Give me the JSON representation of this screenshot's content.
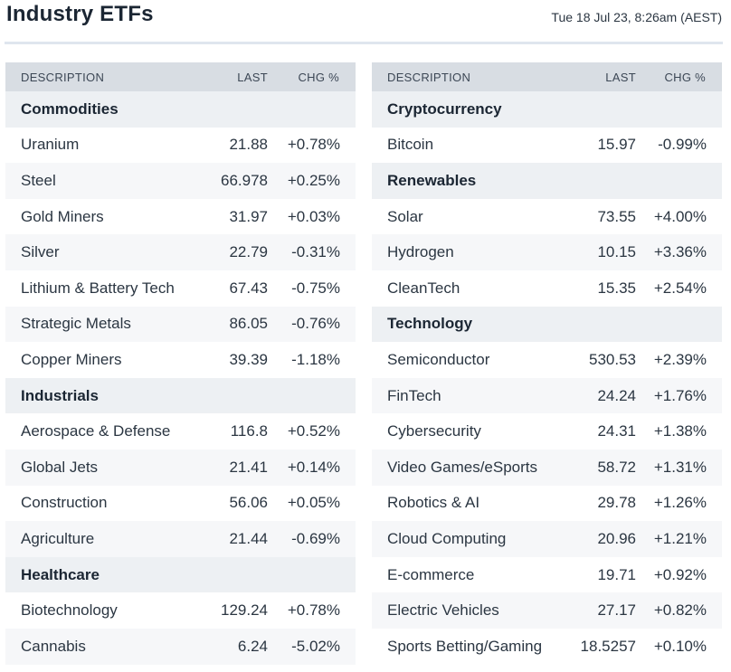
{
  "header": {
    "title": "Industry ETFs",
    "timestamp": "Tue 18 Jul 23, 8:26am (AEST)"
  },
  "columns": {
    "description": "DESCRIPTION",
    "last": "LAST",
    "chg": "CHG %"
  },
  "colors": {
    "positive": "#2f8a57",
    "negative": "#d4403a",
    "header_bg": "#d8dde3",
    "section_bg": "#edf0f3"
  },
  "left_table": [
    {
      "section": "Commodities",
      "items": [
        {
          "name": "Uranium",
          "last": "21.88",
          "chg": "+0.78%"
        },
        {
          "name": "Steel",
          "last": "66.978",
          "chg": "+0.25%"
        },
        {
          "name": "Gold Miners",
          "last": "31.97",
          "chg": "+0.03%"
        },
        {
          "name": "Silver",
          "last": "22.79",
          "chg": "-0.31%"
        },
        {
          "name": "Lithium & Battery Tech",
          "last": "67.43",
          "chg": "-0.75%"
        },
        {
          "name": "Strategic Metals",
          "last": "86.05",
          "chg": "-0.76%"
        },
        {
          "name": "Copper Miners",
          "last": "39.39",
          "chg": "-1.18%"
        }
      ]
    },
    {
      "section": "Industrials",
      "items": [
        {
          "name": "Aerospace & Defense",
          "last": "116.8",
          "chg": "+0.52%"
        },
        {
          "name": "Global Jets",
          "last": "21.41",
          "chg": "+0.14%"
        },
        {
          "name": "Construction",
          "last": "56.06",
          "chg": "+0.05%"
        },
        {
          "name": "Agriculture",
          "last": "21.44",
          "chg": "-0.69%"
        }
      ]
    },
    {
      "section": "Healthcare",
      "items": [
        {
          "name": "Biotechnology",
          "last": "129.24",
          "chg": "+0.78%"
        },
        {
          "name": "Cannabis",
          "last": "6.24",
          "chg": "-5.02%"
        }
      ]
    }
  ],
  "right_table": [
    {
      "section": "Cryptocurrency",
      "items": [
        {
          "name": "Bitcoin",
          "last": "15.97",
          "chg": "-0.99%"
        }
      ]
    },
    {
      "section": "Renewables",
      "items": [
        {
          "name": "Solar",
          "last": "73.55",
          "chg": "+4.00%"
        },
        {
          "name": "Hydrogen",
          "last": "10.15",
          "chg": "+3.36%"
        },
        {
          "name": "CleanTech",
          "last": "15.35",
          "chg": "+2.54%"
        }
      ]
    },
    {
      "section": "Technology",
      "items": [
        {
          "name": "Semiconductor",
          "last": "530.53",
          "chg": "+2.39%"
        },
        {
          "name": "FinTech",
          "last": "24.24",
          "chg": "+1.76%"
        },
        {
          "name": "Cybersecurity",
          "last": "24.31",
          "chg": "+1.38%"
        },
        {
          "name": "Video Games/eSports",
          "last": "58.72",
          "chg": "+1.31%"
        },
        {
          "name": "Robotics & AI",
          "last": "29.78",
          "chg": "+1.26%"
        },
        {
          "name": "Cloud Computing",
          "last": "20.96",
          "chg": "+1.21%"
        },
        {
          "name": "E-commerce",
          "last": "19.71",
          "chg": "+0.92%"
        },
        {
          "name": "Electric Vehicles",
          "last": "27.17",
          "chg": "+0.82%"
        },
        {
          "name": "Sports Betting/Gaming",
          "last": "18.5257",
          "chg": "+0.10%"
        }
      ]
    }
  ]
}
